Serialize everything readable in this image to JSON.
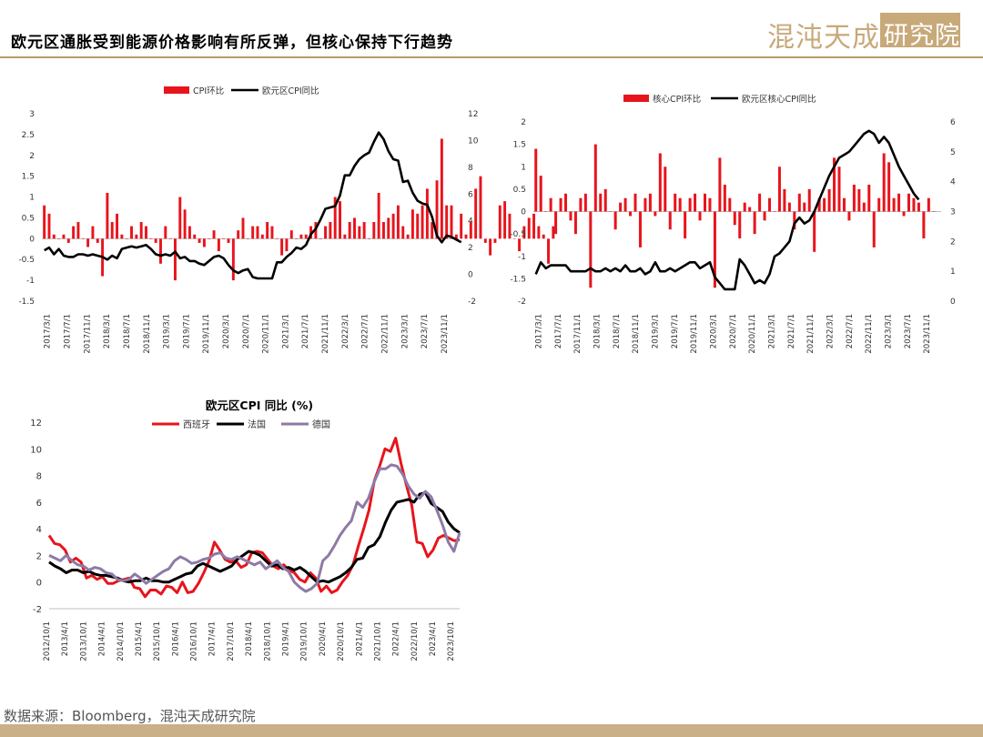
{
  "header": {
    "title": "欧元区通胀受到能源价格影响有所反弹，但核心保持下行趋势",
    "logo_text": "混沌天成",
    "logo_box_text": "研究院",
    "accent_color": "#c8a97a"
  },
  "footer": {
    "source": "数据来源：Bloomberg，混沌天成研究院"
  },
  "colors": {
    "red": "#e8141c",
    "black": "#000000",
    "purple": "#8e7aa6"
  },
  "chart_data": [
    {
      "type": "bar+line",
      "title": "",
      "legend": [
        "CPI环比",
        "欧元区CPI同比"
      ],
      "legend_position": "top-center",
      "x_tick_labels": [
        "2017/3/1",
        "2017/7/1",
        "2017/11/1",
        "2018/3/1",
        "2018/7/1",
        "2018/11/1",
        "2019/3/1",
        "2019/7/1",
        "2019/11/1",
        "2020/3/1",
        "2020/7/1",
        "2020/11/1",
        "2021/3/1",
        "2021/7/1",
        "2021/11/1",
        "2022/3/1",
        "2022/7/1",
        "2022/11/1",
        "2023/3/1",
        "2023/7/1",
        "2023/11/1"
      ],
      "y_left_ticks": [
        "-1.5",
        "-1",
        "-0.5",
        "0",
        "0.5",
        "1",
        "1.5",
        "2",
        "2.5",
        "3"
      ],
      "y_right_ticks": [
        "-2",
        "0",
        "2",
        "4",
        "6",
        "8",
        "10",
        "12"
      ],
      "ylim_left": [
        -1.5,
        3
      ],
      "ylim_right": [
        -2,
        12
      ],
      "x_start": "2017-01",
      "bars_mom": [
        0.8,
        0.6,
        0.1,
        0.0,
        0.1,
        -0.1,
        0.3,
        0.4,
        0.0,
        -0.2,
        0.3,
        -0.1,
        -0.9,
        1.1,
        0.4,
        0.6,
        0.1,
        0.0,
        0.3,
        0.1,
        0.4,
        0.3,
        0.0,
        -0.1,
        -0.6,
        0.3,
        0.0,
        -1.0,
        1.0,
        0.7,
        0.3,
        0.1,
        -0.1,
        -0.2,
        0.0,
        0.2,
        -0.3,
        0.0,
        -0.1,
        -1.0,
        0.2,
        0.5,
        0.0,
        0.3,
        0.3,
        0.1,
        0.4,
        0.3,
        0.0,
        -0.4,
        -0.3,
        0.2,
        0.0,
        0.1,
        0.1,
        0.3,
        0.4,
        0.0,
        0.3,
        0.4,
        1.0,
        0.9,
        0.1,
        0.4,
        0.5,
        0.3,
        0.4,
        0.0,
        0.4,
        1.1,
        0.4,
        0.5,
        0.6,
        0.8,
        0.3,
        0.1,
        0.7,
        0.6,
        0.8,
        1.2,
        0.4,
        1.4,
        2.4,
        0.8,
        0.8,
        0.1,
        0.6,
        0.1,
        0.4,
        1.2,
        1.5,
        -0.1,
        -0.4,
        -0.1,
        0.8,
        0.9,
        0.6,
        0.0,
        -0.3,
        0.3,
        0.5,
        0.6,
        0.3,
        0.1,
        -0.6,
        0.3
      ],
      "line_yoy": [
        1.8,
        2.0,
        1.5,
        1.9,
        1.4,
        1.3,
        1.3,
        1.5,
        1.5,
        1.4,
        1.5,
        1.4,
        1.3,
        1.1,
        1.4,
        1.2,
        1.9,
        2.0,
        2.1,
        2.0,
        2.1,
        2.2,
        1.9,
        1.5,
        1.4,
        1.5,
        1.4,
        1.7,
        1.2,
        1.3,
        1.0,
        1.0,
        0.8,
        0.7,
        1.0,
        1.3,
        1.4,
        1.2,
        0.7,
        0.3,
        0.1,
        0.3,
        0.4,
        -0.2,
        -0.3,
        -0.3,
        -0.3,
        -0.3,
        0.9,
        0.9,
        1.3,
        1.6,
        2.0,
        1.9,
        2.2,
        3.0,
        3.4,
        4.1,
        4.9,
        5.0,
        5.1,
        5.9,
        7.4,
        7.4,
        8.1,
        8.6,
        8.9,
        9.1,
        9.9,
        10.6,
        10.1,
        9.2,
        8.6,
        8.5,
        6.9,
        7.0,
        6.1,
        5.5,
        5.3,
        5.2,
        4.3,
        2.9,
        2.4,
        2.9,
        2.8,
        2.6,
        2.4
      ],
      "line_start": "2017-01"
    },
    {
      "type": "bar+line",
      "title": "",
      "legend": [
        "核心CPI环比",
        "欧元区核心CPI同比"
      ],
      "legend_position": "top-center",
      "x_tick_labels": [
        "2017/3/1",
        "2017/7/1",
        "2017/11/1",
        "2018/3/1",
        "2018/7/1",
        "2018/11/1",
        "2019/3/1",
        "2019/7/1",
        "2019/11/1",
        "2020/3/1",
        "2020/7/1",
        "2020/11/1",
        "2021/3/1",
        "2021/7/1",
        "2021/11/1",
        "2022/3/1",
        "2022/7/1",
        "2022/11/1",
        "2023/3/1",
        "2023/7/1",
        "2023/11/1"
      ],
      "y_left_ticks": [
        "-2",
        "-1.5",
        "-1",
        "-0.5",
        "0",
        "0.5",
        "1",
        "1.5",
        "2"
      ],
      "y_right_ticks": [
        "0",
        "1",
        "2",
        "3",
        "4",
        "5",
        "6"
      ],
      "ylim_left": [
        -2,
        2
      ],
      "ylim_right": [
        0,
        6
      ],
      "bars_mom": [
        1.4,
        0.8,
        0.0,
        0.3,
        -0.5,
        0.3,
        0.4,
        -0.2,
        -0.5,
        0.3,
        0.4,
        -1.7,
        1.5,
        0.4,
        0.5,
        0.0,
        -0.4,
        0.2,
        0.3,
        -0.1,
        0.4,
        -0.8,
        0.3,
        0.4,
        -0.1,
        1.3,
        1.0,
        -0.4,
        0.4,
        0.3,
        -0.6,
        0.3,
        0.4,
        -0.2,
        0.4,
        0.3,
        -1.7,
        1.2,
        0.6,
        0.3,
        -0.3,
        -0.6,
        0.2,
        0.1,
        -0.5,
        0.4,
        -0.2,
        0.3,
        0.0,
        1.0,
        0.5,
        0.2,
        -0.4,
        0.4,
        0.2,
        0.5,
        -0.9,
        0.3,
        0.3,
        0.5,
        1.2,
        1.0,
        0.3,
        -0.2,
        0.6,
        0.5,
        0.2,
        0.6,
        -0.8,
        0.3,
        1.3,
        1.1,
        0.3,
        0.4,
        -0.1,
        0.4,
        0.3,
        0.2,
        -0.6,
        0.3,
        0.0
      ],
      "line_yoy": [
        0.9,
        1.3,
        1.1,
        1.2,
        1.2,
        1.2,
        1.2,
        1.0,
        1.0,
        1.0,
        1.0,
        1.1,
        1.0,
        1.0,
        1.1,
        1.0,
        1.1,
        1.0,
        1.2,
        1.0,
        1.0,
        1.1,
        0.9,
        1.0,
        1.3,
        1.0,
        1.0,
        1.1,
        1.0,
        1.1,
        1.2,
        1.3,
        1.3,
        1.1,
        1.2,
        1.3,
        0.8,
        0.6,
        0.4,
        0.4,
        0.4,
        1.4,
        1.2,
        0.9,
        0.6,
        0.7,
        0.6,
        0.9,
        1.5,
        1.6,
        1.8,
        2.0,
        2.6,
        2.8,
        2.6,
        2.7,
        3.0,
        3.4,
        3.8,
        4.2,
        4.5,
        4.8,
        4.9,
        5.0,
        5.2,
        5.4,
        5.6,
        5.7,
        5.6,
        5.3,
        5.5,
        5.3,
        4.9,
        4.5,
        4.2,
        3.9,
        3.6,
        3.4
      ],
      "bar_start": "2017-03",
      "line_start": "2017-03"
    },
    {
      "type": "line",
      "title": "欧元区CPI 同比 (%)",
      "legend": [
        "西班牙",
        "法国",
        "德国"
      ],
      "legend_position": "top-center",
      "x_tick_labels": [
        "2012/10/1",
        "2013/4/1",
        "2013/10/1",
        "2014/4/1",
        "2014/10/1",
        "2015/4/1",
        "2015/10/1",
        "2016/4/1",
        "2016/10/1",
        "2017/4/1",
        "2017/10/1",
        "2018/4/1",
        "2018/10/1",
        "2019/4/1",
        "2019/10/1",
        "2020/4/1",
        "2020/10/1",
        "2021/4/1",
        "2021/10/1",
        "2022/4/1",
        "2022/10/1",
        "2023/4/1",
        "2023/10/1"
      ],
      "y_ticks": [
        "-2",
        "0",
        "2",
        "4",
        "6",
        "8",
        "10",
        "12"
      ],
      "ylim": [
        -2,
        12
      ],
      "series": [
        {
          "name": "西班牙",
          "color": "#e8141c",
          "values": [
            3.5,
            2.9,
            2.8,
            2.4,
            1.5,
            1.8,
            1.5,
            0.3,
            0.5,
            0.2,
            0.4,
            -0.1,
            -0.1,
            0.1,
            0.2,
            0.3,
            -0.4,
            -0.5,
            -1.1,
            -0.6,
            -0.6,
            -0.9,
            -0.3,
            -0.4,
            -0.8,
            0.0,
            -0.8,
            -0.7,
            -0.1,
            0.7,
            1.6,
            3.0,
            2.4,
            1.7,
            1.5,
            1.6,
            1.1,
            1.3,
            2.2,
            2.3,
            2.2,
            1.7,
            1.2,
            1.0,
            1.3,
            0.9,
            0.7,
            0.2,
            0.0,
            0.7,
            0.3,
            -0.7,
            -0.3,
            -0.8,
            -0.6,
            0.0,
            0.5,
            1.3,
            2.7,
            4.0,
            5.4,
            7.6,
            8.7,
            10.0,
            9.8,
            10.8,
            8.9,
            7.3,
            5.8,
            3.0,
            2.9,
            1.9,
            2.4,
            3.3,
            3.5,
            3.3,
            3.1,
            3.2
          ]
        },
        {
          "name": "法国",
          "color": "#000000",
          "values": [
            1.5,
            1.2,
            1.0,
            0.7,
            0.9,
            0.9,
            0.7,
            0.8,
            0.6,
            0.5,
            0.5,
            0.4,
            0.3,
            0.1,
            0.0,
            0.1,
            0.1,
            0.3,
            0.1,
            0.1,
            0.0,
            0.0,
            0.2,
            0.4,
            0.6,
            0.7,
            1.2,
            1.4,
            1.2,
            1.0,
            0.8,
            1.0,
            1.2,
            1.7,
            2.0,
            2.3,
            2.2,
            2.0,
            1.6,
            1.2,
            1.3,
            1.0,
            1.1,
            0.9,
            1.1,
            0.8,
            0.4,
            0.0,
            0.1,
            0.0,
            0.2,
            0.4,
            0.7,
            1.1,
            1.7,
            1.8,
            2.6,
            2.8,
            3.4,
            4.5,
            5.4,
            6.0,
            6.1,
            6.2,
            6.0,
            6.6,
            6.7,
            5.9,
            5.6,
            5.3,
            4.5,
            4.0,
            3.7
          ]
        },
        {
          "name": "德国",
          "color": "#8e7aa6",
          "values": [
            2.0,
            1.8,
            1.6,
            2.0,
            1.6,
            1.3,
            1.2,
            0.9,
            1.1,
            1.0,
            0.7,
            0.6,
            0.2,
            0.1,
            0.2,
            0.6,
            0.3,
            -0.1,
            0.2,
            0.5,
            0.8,
            1.0,
            1.6,
            1.9,
            1.7,
            1.4,
            1.5,
            1.7,
            1.8,
            2.1,
            2.2,
            1.8,
            1.7,
            1.9,
            1.7,
            1.5,
            1.3,
            1.5,
            1.0,
            1.3,
            1.6,
            1.1,
            0.8,
            0.0,
            -0.4,
            -0.7,
            -0.5,
            -0.1,
            1.6,
            2.0,
            2.7,
            3.5,
            4.1,
            4.6,
            6.0,
            5.6,
            6.3,
            7.5,
            8.5,
            8.5,
            8.8,
            8.7,
            8.1,
            7.2,
            6.6,
            6.3,
            6.8,
            6.4,
            5.4,
            4.3,
            3.0,
            2.3,
            3.7
          ]
        }
      ]
    }
  ]
}
